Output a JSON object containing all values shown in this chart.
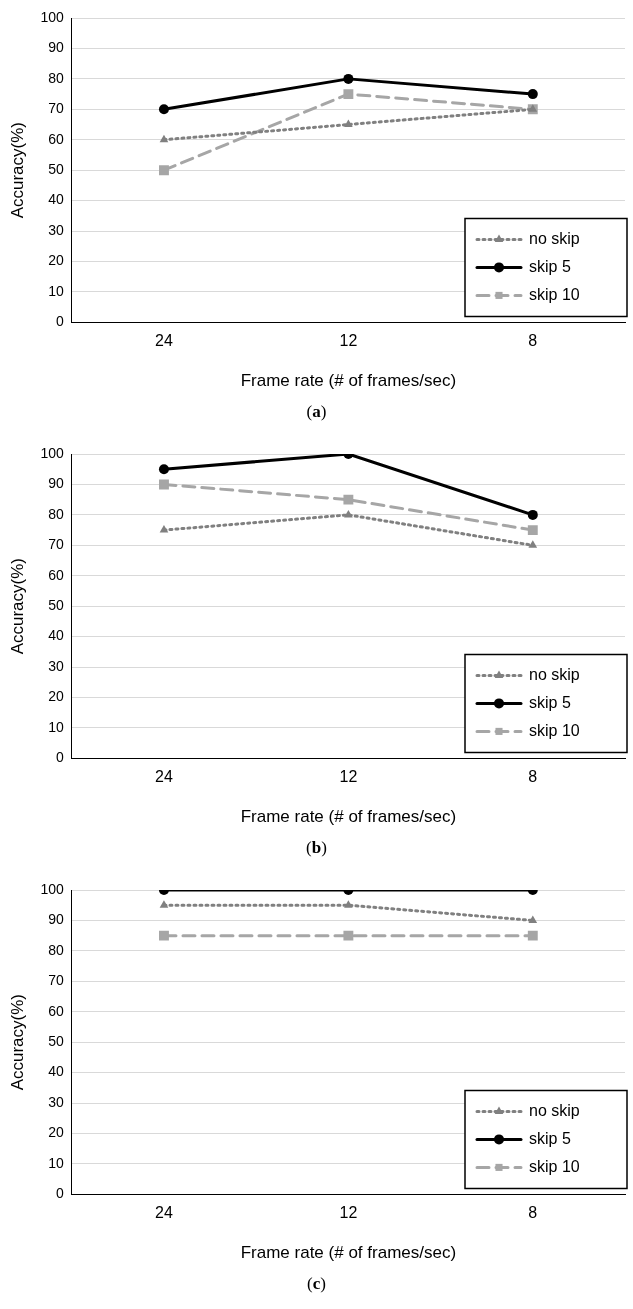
{
  "chart_data": [
    {
      "type": "line",
      "xlabel": "Frame rate (# of frames/sec)",
      "ylabel": "Accuracy(%)",
      "annotations": [
        "(a)"
      ],
      "categories": [
        "24",
        "12",
        "8"
      ],
      "series": [
        {
          "name": "no skip",
          "color": "#808080",
          "values": [
            60,
            65,
            70
          ],
          "marker": "triangle",
          "line_style": "dotted"
        },
        {
          "name": "skip 5",
          "color": "#000000",
          "values": [
            70,
            80,
            75
          ],
          "marker": "circle",
          "line_style": "solid"
        },
        {
          "name": "skip 10",
          "color": "#a6a6a6",
          "values": [
            50,
            75,
            70
          ],
          "marker": "square",
          "line_style": "dashed"
        }
      ],
      "ylim": [
        0,
        100
      ],
      "yticks": [
        0,
        10,
        20,
        30,
        40,
        50,
        60,
        70,
        80,
        90,
        100
      ],
      "grid": "y",
      "legend": "bottom right"
    },
    {
      "type": "line",
      "xlabel": "Frame rate (# of frames/sec)",
      "ylabel": "Accuracy(%)",
      "annotations": [
        "(b)"
      ],
      "categories": [
        "24",
        "12",
        "8"
      ],
      "series": [
        {
          "name": "no skip",
          "color": "#808080",
          "values": [
            75,
            80,
            70
          ],
          "marker": "triangle",
          "line_style": "dotted"
        },
        {
          "name": "skip 5",
          "color": "#000000",
          "values": [
            95,
            100,
            80
          ],
          "marker": "circle",
          "line_style": "solid"
        },
        {
          "name": "skip 10",
          "color": "#a6a6a6",
          "values": [
            90,
            85,
            75
          ],
          "marker": "square",
          "line_style": "dashed"
        }
      ],
      "ylim": [
        0,
        100
      ],
      "yticks": [
        0,
        10,
        20,
        30,
        40,
        50,
        60,
        70,
        80,
        90,
        100
      ],
      "grid": "y",
      "legend": "bottom right"
    },
    {
      "type": "line",
      "xlabel": "Frame rate (# of frames/sec)",
      "ylabel": "Accuracy(%)",
      "annotations": [
        "(c)"
      ],
      "categories": [
        "24",
        "12",
        "8"
      ],
      "series": [
        {
          "name": "no skip",
          "color": "#808080",
          "values": [
            95,
            95,
            90
          ],
          "marker": "triangle",
          "line_style": "dotted"
        },
        {
          "name": "skip 5",
          "color": "#000000",
          "values": [
            100,
            100,
            100
          ],
          "marker": "circle",
          "line_style": "solid"
        },
        {
          "name": "skip 10",
          "color": "#a6a6a6",
          "values": [
            85,
            85,
            85
          ],
          "marker": "square",
          "line_style": "dashed"
        }
      ],
      "ylim": [
        0,
        100
      ],
      "yticks": [
        0,
        10,
        20,
        30,
        40,
        50,
        60,
        70,
        80,
        90,
        100
      ],
      "grid": "y",
      "legend": "bottom right"
    }
  ]
}
